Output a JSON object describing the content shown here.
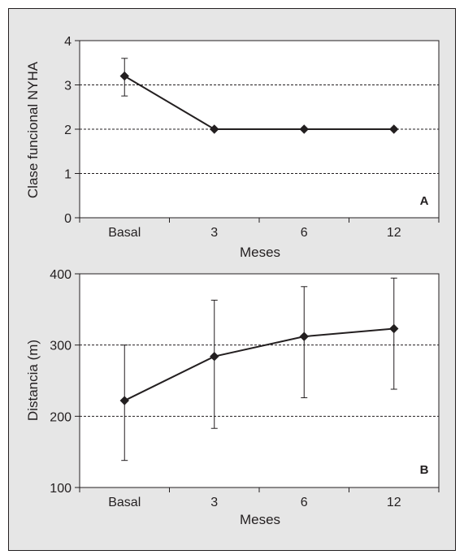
{
  "colors": {
    "frame_fill": "#e6e6e6",
    "plot_fill": "#ffffff",
    "ink": "#231f20",
    "grid": "#231f20"
  },
  "chart_data": [
    {
      "type": "line",
      "panel_label": "A",
      "xlabel": "Meses",
      "ylabel": "Clase funcional NYHA",
      "categories": [
        "Basal",
        "3",
        "6",
        "12"
      ],
      "ylim": [
        0,
        4
      ],
      "yticks": [
        "0",
        "1",
        "2",
        "3",
        "4"
      ],
      "grid": "horizontal dashed at 1, 2, 3",
      "series": [
        {
          "values": [
            3.2,
            2.0,
            2.0,
            2.0
          ],
          "error_upper": [
            3.6,
            null,
            null,
            null
          ],
          "error_lower": [
            2.75,
            null,
            null,
            null
          ],
          "marker": "diamond"
        }
      ]
    },
    {
      "type": "line",
      "panel_label": "B",
      "xlabel": "Meses",
      "ylabel": "Distancia (m)",
      "categories": [
        "Basal",
        "3",
        "6",
        "12"
      ],
      "ylim": [
        100,
        400
      ],
      "yticks": [
        "100",
        "200",
        "300",
        "400"
      ],
      "grid": "horizontal dashed at 200, 300",
      "series": [
        {
          "values": [
            222,
            284,
            312,
            323
          ],
          "error_upper": [
            300,
            363,
            382,
            394
          ],
          "error_lower": [
            138,
            183,
            226,
            238
          ],
          "marker": "diamond"
        }
      ]
    }
  ]
}
